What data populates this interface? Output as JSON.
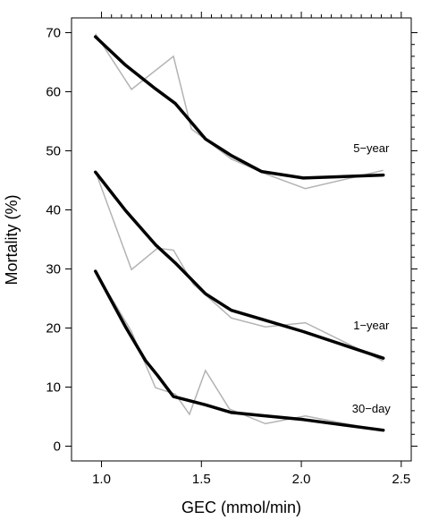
{
  "chart_data": {
    "type": "line",
    "title": "",
    "xlabel": "GEC (mmol/min)",
    "ylabel": "Mortality (%)",
    "xlim": [
      0.85,
      2.55
    ],
    "ylim": [
      -2.5,
      72.5
    ],
    "xticks": [
      "1.0",
      "1.5",
      "2.0",
      "2.5"
    ],
    "yticks": [
      "0",
      "10",
      "20",
      "30",
      "40",
      "50",
      "60",
      "70"
    ],
    "grid": false,
    "legend": "none",
    "colors": {
      "observed": "#b3b3b3",
      "smoothed": "#000000"
    },
    "series": [
      {
        "name": "5-year",
        "observed": {
          "x": [
            0.97,
            1.15,
            1.36,
            1.45,
            1.65,
            1.82,
            2.02,
            2.41
          ],
          "y": [
            69.8,
            60.4,
            66.0,
            53.7,
            48.6,
            46.1,
            43.6,
            46.7
          ]
        },
        "smoothed": {
          "x": [
            0.97,
            1.12,
            1.27,
            1.37,
            1.52,
            1.65,
            1.8,
            2.01,
            2.41
          ],
          "y": [
            69.3,
            64.5,
            60.5,
            58.0,
            52.0,
            49.2,
            46.5,
            45.4,
            45.9
          ]
        }
      },
      {
        "name": "1-year",
        "observed": {
          "x": [
            0.97,
            1.15,
            1.28,
            1.36,
            1.46,
            1.65,
            1.82,
            2.02,
            2.41
          ],
          "y": [
            46.5,
            29.9,
            33.5,
            33.2,
            27.4,
            21.7,
            20.2,
            20.9,
            14.4
          ]
        },
        "smoothed": {
          "x": [
            0.97,
            1.12,
            1.27,
            1.37,
            1.52,
            1.65,
            1.8,
            2.01,
            2.41
          ],
          "y": [
            46.4,
            39.9,
            34.1,
            31.0,
            25.8,
            23.0,
            21.5,
            19.4,
            14.9
          ]
        }
      },
      {
        "name": "30-day",
        "observed": {
          "x": [
            0.97,
            1.15,
            1.27,
            1.37,
            1.44,
            1.52,
            1.64,
            1.82,
            2.02,
            2.41
          ],
          "y": [
            29.6,
            19.4,
            9.9,
            8.8,
            5.4,
            12.8,
            6.3,
            3.8,
            5.1,
            2.6
          ]
        },
        "smoothed": {
          "x": [
            0.97,
            1.12,
            1.22,
            1.28,
            1.36,
            1.52,
            1.65,
            1.8,
            2.01,
            2.41
          ],
          "y": [
            29.6,
            20.2,
            14.5,
            12.0,
            8.4,
            7.0,
            5.7,
            5.2,
            4.5,
            2.7
          ]
        }
      }
    ],
    "series_labels": [
      {
        "text": "5−year",
        "x": 2.35,
        "y": 49.8
      },
      {
        "text": "1−year",
        "x": 2.35,
        "y": 19.8
      },
      {
        "text": "30−day",
        "x": 2.35,
        "y": 5.7
      }
    ]
  }
}
